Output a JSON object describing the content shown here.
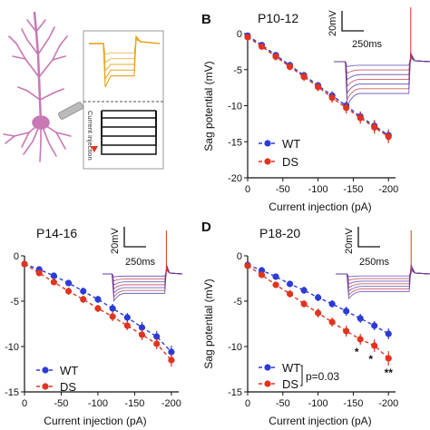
{
  "colors": {
    "wt": "#2B3BD6",
    "ds": "#E0341E",
    "neuron": "#C878B4",
    "trace_gold": "#E8A41C",
    "axis": "#111111"
  },
  "schematic": {
    "current_label": "Current injection"
  },
  "panels": [
    {
      "letter": "B",
      "title": "P10-12",
      "scale_v": "20mV",
      "scale_t": "250ms"
    },
    {
      "letter": "",
      "title": "P14-16",
      "scale_v": "20mV",
      "scale_t": "250ms"
    },
    {
      "letter": "D",
      "title": "P18-20",
      "scale_v": "20mV",
      "scale_t": "250ms",
      "stats": {
        "p_value": "p=0.03",
        "markers": [
          "*",
          "*",
          "**"
        ]
      }
    }
  ],
  "chart_data": [
    {
      "type": "line",
      "title": "P10-12",
      "xlabel": "Current injection (pA)",
      "ylabel": "Sag potential (mV)",
      "x": [
        0,
        -20,
        -40,
        -60,
        -80,
        -100,
        -120,
        -140,
        -160,
        -180,
        -200
      ],
      "xlim": [
        0,
        -210
      ],
      "ylim": [
        -20,
        0
      ],
      "xticks": [
        0,
        -50,
        -100,
        -150,
        -200
      ],
      "yticks": [
        0,
        -5,
        -10,
        -15,
        -20
      ],
      "legend": "bottom-left",
      "series": [
        {
          "name": "WT",
          "values": [
            -0.3,
            -1.6,
            -3.0,
            -4.4,
            -5.8,
            -7.2,
            -8.6,
            -10.0,
            -11.5,
            -12.8,
            -14.1
          ],
          "err": [
            0.3,
            0.4,
            0.4,
            0.5,
            0.5,
            0.5,
            0.6,
            0.6,
            0.7,
            0.8,
            0.8
          ]
        },
        {
          "name": "DS",
          "values": [
            -0.5,
            -1.8,
            -3.2,
            -4.6,
            -6.0,
            -7.4,
            -8.9,
            -10.3,
            -11.7,
            -13.0,
            -14.3
          ],
          "err": [
            0.3,
            0.4,
            0.5,
            0.5,
            0.6,
            0.6,
            0.7,
            0.8,
            0.8,
            0.9,
            0.9
          ]
        }
      ]
    },
    {
      "type": "line",
      "title": "P14-16",
      "xlabel": "Current injection (pA)",
      "ylabel": "",
      "x": [
        0,
        -20,
        -40,
        -60,
        -80,
        -100,
        -120,
        -140,
        -160,
        -180,
        -200
      ],
      "xlim": [
        0,
        -210
      ],
      "ylim": [
        -15,
        0
      ],
      "xticks": [
        0,
        -50,
        -100,
        -150,
        -200
      ],
      "yticks": [
        0,
        -5,
        -10,
        -15
      ],
      "legend": "bottom-left",
      "series": [
        {
          "name": "WT",
          "values": [
            -0.9,
            -1.5,
            -2.2,
            -3.0,
            -3.9,
            -4.8,
            -5.8,
            -6.8,
            -7.9,
            -8.9,
            -10.6
          ],
          "err": [
            0.2,
            0.3,
            0.3,
            0.3,
            0.4,
            0.4,
            0.5,
            0.5,
            0.6,
            0.6,
            0.7
          ]
        },
        {
          "name": "DS",
          "values": [
            -0.9,
            -1.9,
            -2.9,
            -3.9,
            -4.8,
            -5.8,
            -6.7,
            -7.7,
            -8.7,
            -9.7,
            -11.5
          ],
          "err": [
            0.2,
            0.3,
            0.3,
            0.4,
            0.4,
            0.4,
            0.5,
            0.5,
            0.6,
            0.6,
            0.7
          ]
        }
      ]
    },
    {
      "type": "line",
      "title": "P18-20",
      "xlabel": "Current injection (pA)",
      "ylabel": "Sag potential (mV)",
      "x": [
        0,
        -20,
        -40,
        -60,
        -80,
        -100,
        -120,
        -140,
        -160,
        -180,
        -200
      ],
      "xlim": [
        0,
        -210
      ],
      "ylim": [
        -15,
        0
      ],
      "xticks": [
        0,
        -50,
        -100,
        -150,
        -200
      ],
      "yticks": [
        0,
        -5,
        -10,
        -15
      ],
      "legend": "bottom-left",
      "series": [
        {
          "name": "WT",
          "values": [
            -1.0,
            -1.6,
            -2.3,
            -3.1,
            -3.8,
            -4.6,
            -5.3,
            -6.1,
            -6.9,
            -7.7,
            -8.6
          ],
          "err": [
            0.2,
            0.3,
            0.3,
            0.3,
            0.4,
            0.4,
            0.4,
            0.5,
            0.5,
            0.5,
            0.6
          ]
        },
        {
          "name": "DS",
          "values": [
            -1.1,
            -2.1,
            -3.2,
            -4.2,
            -5.3,
            -6.3,
            -7.3,
            -8.3,
            -9.2,
            -9.9,
            -11.3
          ],
          "err": [
            0.2,
            0.3,
            0.3,
            0.4,
            0.4,
            0.5,
            0.5,
            0.6,
            0.6,
            0.7,
            0.8
          ]
        }
      ]
    }
  ]
}
